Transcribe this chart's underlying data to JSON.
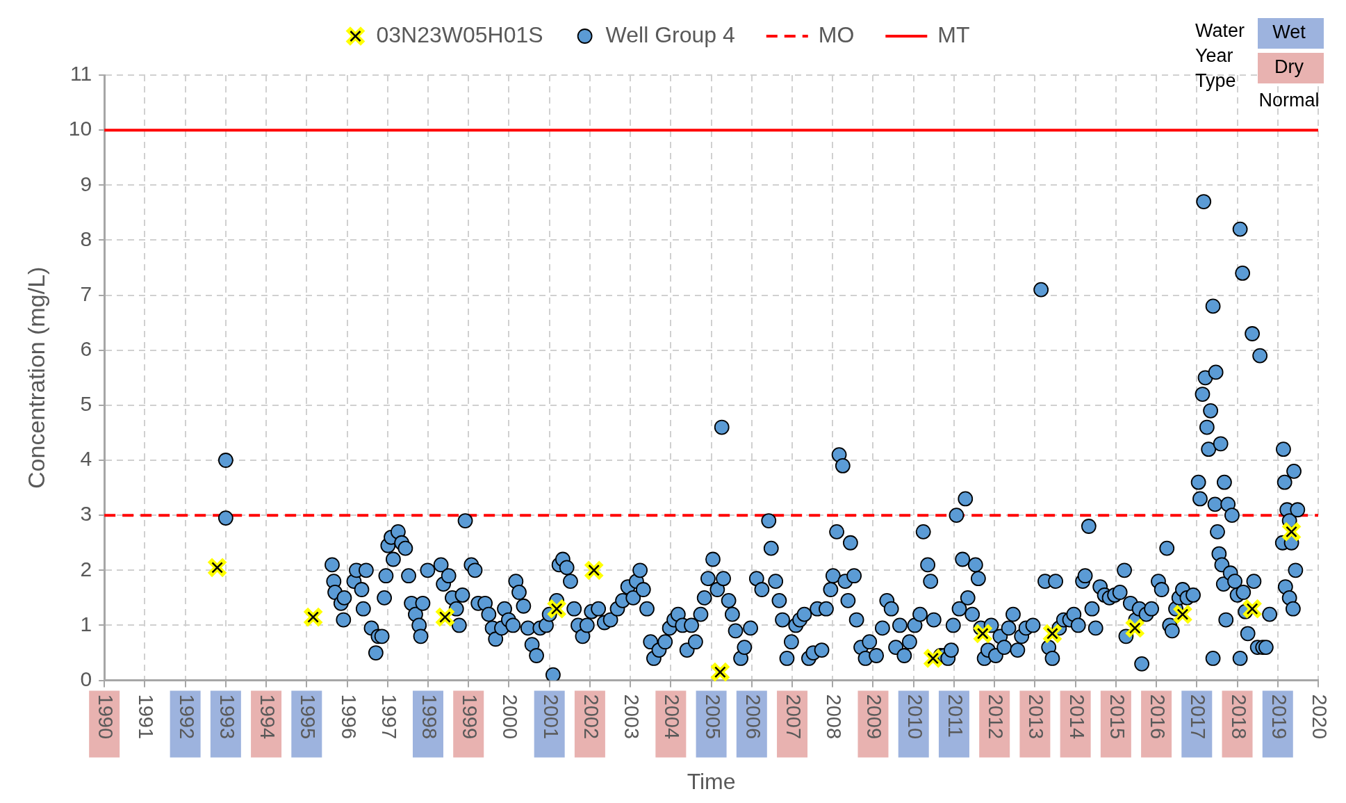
{
  "chart_data": {
    "type": "scatter",
    "xlabel": "Time",
    "ylabel": "Concentration (mg/L)",
    "xlim": [
      1990,
      2020
    ],
    "xticks": [
      1990,
      1991,
      1992,
      1993,
      1994,
      1995,
      1996,
      1997,
      1998,
      1999,
      2000,
      2001,
      2002,
      2003,
      2004,
      2005,
      2006,
      2007,
      2008,
      2009,
      2010,
      2011,
      2012,
      2013,
      2014,
      2015,
      2016,
      2017,
      2018,
      2019,
      2020
    ],
    "ylim": [
      0,
      11
    ],
    "yticks": [
      0,
      1,
      2,
      3,
      4,
      5,
      6,
      7,
      8,
      9,
      10,
      11
    ],
    "grid": true,
    "legend": "top",
    "series": [
      {
        "name": "03N23W05H01S",
        "color": "#ffff00",
        "marker": "cross",
        "x": [
          1992.79,
          1995.16,
          1998.42,
          2001.18,
          2002.1,
          2005.22,
          2010.48,
          2011.71,
          2013.43,
          2015.47,
          2016.65,
          2018.37,
          2019.34
        ],
        "values": [
          2.05,
          1.15,
          1.15,
          1.3,
          2.0,
          0.15,
          0.4,
          0.85,
          0.85,
          0.95,
          1.2,
          1.3,
          2.7
        ]
      },
      {
        "name": "Well Group 4",
        "color": "#5b9bd5",
        "marker": "circle",
        "x": [
          1993.0,
          1993.0,
          1995.63,
          1995.67,
          1995.7,
          1995.85,
          1995.91,
          1995.93,
          1996.17,
          1996.23,
          1996.36,
          1996.4,
          1996.47,
          1996.6,
          1996.71,
          1996.77,
          1996.86,
          1996.92,
          1996.96,
          1997.01,
          1997.09,
          1997.14,
          1997.26,
          1997.35,
          1997.44,
          1997.52,
          1997.59,
          1997.69,
          1997.78,
          1997.82,
          1997.87,
          1997.99,
          1998.32,
          1998.38,
          1998.51,
          1998.6,
          1998.7,
          1998.77,
          1998.85,
          1998.92,
          1999.07,
          1999.16,
          1999.24,
          1999.41,
          1999.5,
          1999.59,
          1999.67,
          1999.82,
          1999.89,
          1999.99,
          2000.1,
          2000.17,
          2000.25,
          2000.36,
          2000.47,
          2000.57,
          2000.68,
          2000.77,
          2000.92,
          2001.0,
          2001.09,
          2001.18,
          2001.24,
          2001.33,
          2001.43,
          2001.52,
          2001.61,
          2001.71,
          2001.82,
          2001.93,
          2002.04,
          2002.21,
          2002.36,
          2002.51,
          2002.68,
          2002.81,
          2002.94,
          2003.07,
          2003.15,
          2003.24,
          2003.32,
          2003.41,
          2003.5,
          2003.58,
          2003.71,
          2003.86,
          2003.97,
          2004.08,
          2004.18,
          2004.29,
          2004.4,
          2004.51,
          2004.61,
          2004.74,
          2004.83,
          2004.92,
          2005.04,
          2005.15,
          2005.26,
          2005.3,
          2005.43,
          2005.52,
          2005.6,
          2005.73,
          2005.82,
          2005.97,
          2006.12,
          2006.25,
          2006.42,
          2006.48,
          2006.59,
          2006.68,
          2006.76,
          2006.87,
          2006.98,
          2007.09,
          2007.19,
          2007.3,
          2007.41,
          2007.52,
          2007.62,
          2007.73,
          2007.84,
          2007.95,
          2008.01,
          2008.1,
          2008.16,
          2008.25,
          2008.31,
          2008.38,
          2008.44,
          2008.53,
          2008.59,
          2008.7,
          2008.81,
          2008.91,
          2009.08,
          2009.23,
          2009.34,
          2009.45,
          2009.56,
          2009.66,
          2009.77,
          2009.9,
          2010.03,
          2010.16,
          2010.24,
          2010.35,
          2010.42,
          2010.5,
          2010.59,
          2010.67,
          2010.76,
          2010.85,
          2010.93,
          2010.98,
          2011.06,
          2011.13,
          2011.21,
          2011.28,
          2011.34,
          2011.45,
          2011.53,
          2011.6,
          2011.66,
          2011.75,
          2011.84,
          2011.92,
          2012.03,
          2012.14,
          2012.24,
          2012.35,
          2012.46,
          2012.57,
          2012.67,
          2012.78,
          2012.95,
          2013.15,
          2013.25,
          2013.34,
          2013.43,
          2013.51,
          2013.6,
          2013.71,
          2013.86,
          2013.96,
          2014.07,
          2014.18,
          2014.24,
          2014.33,
          2014.41,
          2014.5,
          2014.61,
          2014.72,
          2014.84,
          2014.97,
          2015.1,
          2015.21,
          2015.25,
          2015.36,
          2015.49,
          2015.58,
          2015.64,
          2015.75,
          2015.88,
          2016.05,
          2016.13,
          2016.26,
          2016.33,
          2016.39,
          2016.48,
          2016.56,
          2016.65,
          2016.76,
          2016.91,
          2017.04,
          2017.08,
          2017.14,
          2017.17,
          2017.21,
          2017.25,
          2017.29,
          2017.34,
          2017.4,
          2017.45,
          2017.47,
          2017.51,
          2017.55,
          2017.59,
          2017.62,
          2017.66,
          2017.68,
          2017.72,
          2017.77,
          2017.83,
          2017.87,
          2017.94,
          2018.0,
          2018.07,
          2018.13,
          2018.15,
          2018.2,
          2018.26,
          2018.37,
          2018.41,
          2018.5,
          2018.56,
          2018.63,
          2018.71,
          2018.8,
          2017.4,
          2018.07,
          2019.12,
          2019.14,
          2019.17,
          2019.19,
          2019.23,
          2019.29,
          2019.29,
          2019.34,
          2019.38,
          2019.4,
          2019.44,
          2019.49
        ],
        "values": [
          4.0,
          2.95,
          2.1,
          1.8,
          1.6,
          1.4,
          1.1,
          1.5,
          1.8,
          2.0,
          1.65,
          1.3,
          2.0,
          0.95,
          0.5,
          0.8,
          0.8,
          1.5,
          1.9,
          2.45,
          2.6,
          2.2,
          2.7,
          2.5,
          2.4,
          1.9,
          1.4,
          1.2,
          1.0,
          0.8,
          1.4,
          2.0,
          2.1,
          1.75,
          1.9,
          1.5,
          1.3,
          1.0,
          1.55,
          2.9,
          2.1,
          2.0,
          1.4,
          1.4,
          1.2,
          0.95,
          0.75,
          0.95,
          1.3,
          1.1,
          1.0,
          1.8,
          1.6,
          1.35,
          0.95,
          0.65,
          0.45,
          0.95,
          1.0,
          1.2,
          0.1,
          1.45,
          2.1,
          2.2,
          2.05,
          1.8,
          1.3,
          1.0,
          0.8,
          1.0,
          1.25,
          1.3,
          1.05,
          1.1,
          1.3,
          1.45,
          1.7,
          1.5,
          1.8,
          2.0,
          1.65,
          1.3,
          0.7,
          0.4,
          0.55,
          0.7,
          0.95,
          1.1,
          1.2,
          1.0,
          0.55,
          1.0,
          0.7,
          1.2,
          1.5,
          1.85,
          2.2,
          1.65,
          4.6,
          1.85,
          1.45,
          1.2,
          0.9,
          0.4,
          0.6,
          0.95,
          1.85,
          1.65,
          2.9,
          2.4,
          1.8,
          1.45,
          1.1,
          0.4,
          0.7,
          1.0,
          1.1,
          1.2,
          0.4,
          0.5,
          1.3,
          0.55,
          1.3,
          1.65,
          1.9,
          2.7,
          4.1,
          3.9,
          1.8,
          1.45,
          2.5,
          1.9,
          1.1,
          0.6,
          0.4,
          0.7,
          0.45,
          0.95,
          1.45,
          1.3,
          0.6,
          1.0,
          0.45,
          0.7,
          1.0,
          1.2,
          2.7,
          2.1,
          1.8,
          1.1,
          null,
          0.45,
          0.45,
          0.4,
          0.55,
          1.0,
          3.0,
          1.3,
          2.2,
          3.3,
          1.5,
          1.2,
          2.1,
          1.85,
          0.95,
          0.4,
          0.55,
          1.0,
          0.45,
          0.8,
          0.6,
          0.95,
          1.2,
          0.55,
          0.8,
          0.95,
          1.0,
          7.1,
          1.8,
          0.6,
          0.4,
          1.8,
          0.95,
          1.1,
          1.1,
          1.2,
          1.0,
          1.8,
          1.9,
          2.8,
          1.3,
          0.95,
          1.7,
          1.55,
          1.5,
          1.55,
          1.6,
          2.0,
          0.8,
          1.4,
          1.1,
          1.3,
          0.3,
          1.2,
          1.3,
          1.8,
          1.65,
          2.4,
          1.0,
          0.9,
          1.3,
          1.5,
          1.65,
          1.5,
          1.55,
          3.6,
          3.3,
          5.2,
          8.7,
          5.5,
          4.6,
          4.2,
          4.9,
          6.8,
          3.2,
          5.6,
          2.7,
          2.3,
          4.3,
          2.1,
          1.75,
          3.6,
          1.1,
          3.2,
          1.95,
          3.0,
          1.8,
          1.55,
          8.2,
          7.4,
          1.6,
          1.25,
          0.85,
          6.3,
          1.8,
          0.6,
          5.9,
          0.6,
          0.6,
          1.2,
          0.4,
          0.4,
          2.5,
          4.2,
          3.6,
          1.7,
          3.1,
          2.9,
          1.5,
          2.5,
          1.3,
          3.8,
          2.0,
          3.1
        ]
      }
    ],
    "ref_lines": [
      {
        "axis": "y",
        "value": 3,
        "label": "MO",
        "color": "#ff0000",
        "line_style": "dashed"
      },
      {
        "axis": "y",
        "value": 10,
        "label": "MT",
        "color": "#ff0000",
        "line_style": "solid"
      }
    ],
    "annotations": [
      "Water Year Type",
      "Wet",
      "Dry",
      "Normal"
    ]
  }
}
